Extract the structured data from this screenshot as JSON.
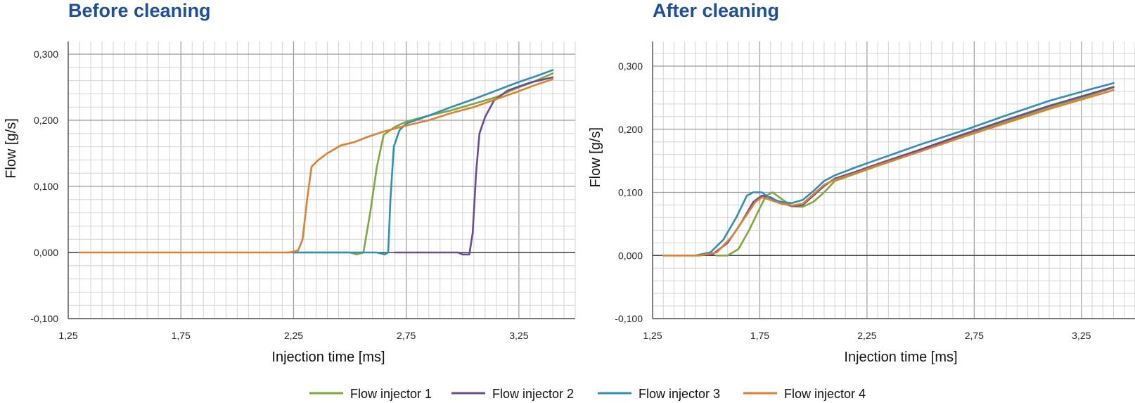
{
  "legend": {
    "items": [
      {
        "label": "Flow injector 1",
        "color": "#7fa83e"
      },
      {
        "label": "Flow injector 2",
        "color": "#6a4c95"
      },
      {
        "label": "Flow injector 3",
        "color": "#2f8fb5"
      },
      {
        "label": "Flow injector 4",
        "color": "#e07f2e"
      }
    ]
  },
  "chart_data": [
    {
      "type": "line",
      "title": "Before cleaning",
      "xlabel": "Injection time [ms]",
      "ylabel": "Flow [g/s]",
      "xlim": [
        1.25,
        3.5
      ],
      "ylim": [
        -0.1,
        0.3
      ],
      "x_ticks": [
        1.25,
        1.75,
        2.25,
        2.75,
        3.25
      ],
      "x_tick_labels": [
        "1,25",
        "1,75",
        "2,25",
        "2,75",
        "3,25"
      ],
      "y_ticks": [
        -0.1,
        0.0,
        0.1,
        0.2,
        0.3
      ],
      "y_tick_labels": [
        "-0,100",
        "0,000",
        "0,100",
        "0,200",
        "0,300"
      ],
      "grid": true,
      "series": [
        {
          "name": "Flow injector 1",
          "color": "#7fa83e",
          "points": [
            [
              2.22,
              0
            ],
            [
              2.5,
              0
            ],
            [
              2.53,
              -0.003
            ],
            [
              2.56,
              0.0
            ],
            [
              2.59,
              0.06
            ],
            [
              2.62,
              0.13
            ],
            [
              2.65,
              0.178
            ],
            [
              2.7,
              0.19
            ],
            [
              2.75,
              0.198
            ],
            [
              2.85,
              0.207
            ],
            [
              2.95,
              0.215
            ],
            [
              3.05,
              0.225
            ],
            [
              3.15,
              0.235
            ],
            [
              3.25,
              0.25
            ],
            [
              3.3,
              0.256
            ],
            [
              3.36,
              0.265
            ],
            [
              3.4,
              0.271
            ]
          ]
        },
        {
          "name": "Flow injector 2",
          "color": "#6a4c95",
          "points": [
            [
              2.7,
              0
            ],
            [
              2.98,
              0
            ],
            [
              3.0,
              -0.003
            ],
            [
              3.03,
              -0.003
            ],
            [
              3.045,
              0.03
            ],
            [
              3.06,
              0.12
            ],
            [
              3.075,
              0.18
            ],
            [
              3.1,
              0.205
            ],
            [
              3.14,
              0.23
            ],
            [
              3.2,
              0.245
            ],
            [
              3.3,
              0.257
            ],
            [
              3.4,
              0.265
            ]
          ]
        },
        {
          "name": "Flow injector 3",
          "color": "#2f8fb5",
          "points": [
            [
              2.25,
              0
            ],
            [
              2.62,
              0
            ],
            [
              2.655,
              -0.003
            ],
            [
              2.67,
              0.0
            ],
            [
              2.68,
              0.08
            ],
            [
              2.695,
              0.16
            ],
            [
              2.72,
              0.185
            ],
            [
              2.75,
              0.195
            ],
            [
              2.85,
              0.207
            ],
            [
              2.95,
              0.22
            ],
            [
              3.05,
              0.232
            ],
            [
              3.15,
              0.245
            ],
            [
              3.25,
              0.258
            ],
            [
              3.32,
              0.266
            ],
            [
              3.4,
              0.276
            ]
          ]
        },
        {
          "name": "Flow injector 4",
          "color": "#e07f2e",
          "points": [
            [
              1.3,
              0
            ],
            [
              2.23,
              0
            ],
            [
              2.27,
              0.003
            ],
            [
              2.29,
              0.02
            ],
            [
              2.31,
              0.08
            ],
            [
              2.33,
              0.13
            ],
            [
              2.36,
              0.14
            ],
            [
              2.4,
              0.15
            ],
            [
              2.46,
              0.162
            ],
            [
              2.52,
              0.167
            ],
            [
              2.58,
              0.175
            ],
            [
              2.65,
              0.183
            ],
            [
              2.75,
              0.192
            ],
            [
              2.85,
              0.2
            ],
            [
              2.95,
              0.211
            ],
            [
              3.05,
              0.22
            ],
            [
              3.15,
              0.232
            ],
            [
              3.25,
              0.244
            ],
            [
              3.32,
              0.253
            ],
            [
              3.4,
              0.262
            ]
          ]
        }
      ]
    },
    {
      "type": "line",
      "title": "After cleaning",
      "xlabel": "Injection time [ms]",
      "ylabel": "Flow [g/s]",
      "xlim": [
        1.25,
        3.5
      ],
      "ylim": [
        -0.1,
        0.3
      ],
      "x_ticks": [
        1.25,
        1.75,
        2.25,
        2.75,
        3.25
      ],
      "x_tick_labels": [
        "1,25",
        "1,75",
        "2,25",
        "2,75",
        "3,25"
      ],
      "y_ticks": [
        -0.1,
        0.0,
        0.1,
        0.2,
        0.3
      ],
      "y_tick_labels": [
        "-0,100",
        "0,000",
        "0,100",
        "0,200",
        "0,300"
      ],
      "grid": true,
      "series": [
        {
          "name": "Flow injector 1",
          "color": "#7fa83e",
          "points": [
            [
              1.55,
              0
            ],
            [
              1.6,
              0
            ],
            [
              1.65,
              0.01
            ],
            [
              1.7,
              0.04
            ],
            [
              1.75,
              0.075
            ],
            [
              1.78,
              0.095
            ],
            [
              1.81,
              0.1
            ],
            [
              1.85,
              0.09
            ],
            [
              1.9,
              0.078
            ],
            [
              1.95,
              0.077
            ],
            [
              2.0,
              0.085
            ],
            [
              2.05,
              0.1
            ],
            [
              2.1,
              0.118
            ],
            [
              2.2,
              0.13
            ],
            [
              2.3,
              0.142
            ],
            [
              2.5,
              0.165
            ],
            [
              2.7,
              0.19
            ],
            [
              2.9,
              0.212
            ],
            [
              3.1,
              0.235
            ],
            [
              3.3,
              0.255
            ],
            [
              3.4,
              0.266
            ]
          ]
        },
        {
          "name": "Flow injector 2",
          "color": "#6a4c95",
          "points": [
            [
              1.45,
              0
            ],
            [
              1.53,
              0.002
            ],
            [
              1.6,
              0.02
            ],
            [
              1.66,
              0.05
            ],
            [
              1.72,
              0.085
            ],
            [
              1.76,
              0.095
            ],
            [
              1.8,
              0.092
            ],
            [
              1.85,
              0.083
            ],
            [
              1.9,
              0.078
            ],
            [
              1.95,
              0.08
            ],
            [
              2.0,
              0.095
            ],
            [
              2.05,
              0.11
            ],
            [
              2.1,
              0.122
            ],
            [
              2.2,
              0.133
            ],
            [
              2.3,
              0.145
            ],
            [
              2.5,
              0.168
            ],
            [
              2.7,
              0.192
            ],
            [
              2.9,
              0.215
            ],
            [
              3.1,
              0.237
            ],
            [
              3.3,
              0.257
            ],
            [
              3.4,
              0.267
            ]
          ]
        },
        {
          "name": "Flow injector 3",
          "color": "#2f8fb5",
          "points": [
            [
              1.45,
              0
            ],
            [
              1.52,
              0.005
            ],
            [
              1.58,
              0.025
            ],
            [
              1.64,
              0.06
            ],
            [
              1.69,
              0.095
            ],
            [
              1.72,
              0.1
            ],
            [
              1.76,
              0.1
            ],
            [
              1.8,
              0.09
            ],
            [
              1.85,
              0.085
            ],
            [
              1.9,
              0.083
            ],
            [
              1.95,
              0.088
            ],
            [
              2.0,
              0.102
            ],
            [
              2.05,
              0.118
            ],
            [
              2.1,
              0.127
            ],
            [
              2.2,
              0.14
            ],
            [
              2.3,
              0.152
            ],
            [
              2.5,
              0.176
            ],
            [
              2.7,
              0.198
            ],
            [
              2.9,
              0.222
            ],
            [
              3.1,
              0.245
            ],
            [
              3.3,
              0.264
            ],
            [
              3.4,
              0.273
            ]
          ]
        },
        {
          "name": "Flow injector 4",
          "color": "#e07f2e",
          "points": [
            [
              1.3,
              0
            ],
            [
              1.47,
              0
            ],
            [
              1.55,
              0.005
            ],
            [
              1.62,
              0.03
            ],
            [
              1.68,
              0.06
            ],
            [
              1.73,
              0.085
            ],
            [
              1.76,
              0.092
            ],
            [
              1.8,
              0.088
            ],
            [
              1.85,
              0.082
            ],
            [
              1.9,
              0.079
            ],
            [
              1.95,
              0.082
            ],
            [
              2.0,
              0.097
            ],
            [
              2.05,
              0.112
            ],
            [
              2.1,
              0.12
            ],
            [
              2.2,
              0.131
            ],
            [
              2.3,
              0.143
            ],
            [
              2.5,
              0.165
            ],
            [
              2.7,
              0.188
            ],
            [
              2.9,
              0.21
            ],
            [
              3.1,
              0.232
            ],
            [
              3.3,
              0.252
            ],
            [
              3.4,
              0.262
            ]
          ]
        }
      ]
    }
  ]
}
